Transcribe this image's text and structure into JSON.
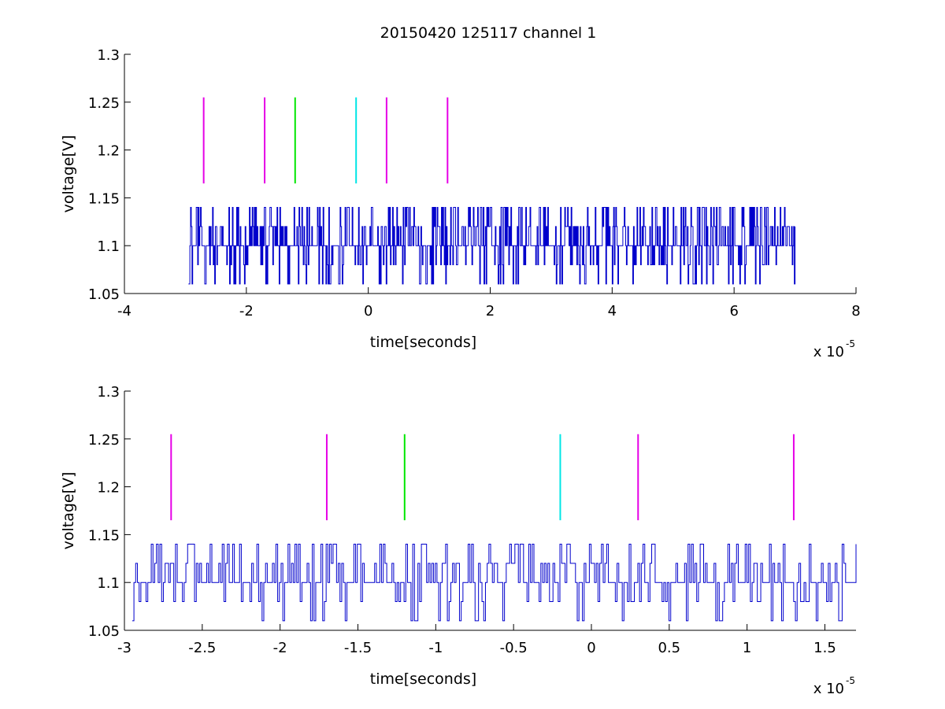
{
  "figure_title": "20150420 125117 channel 1",
  "colors": {
    "trace": "#0000cc",
    "magenta": "#e600e6",
    "green": "#00e600",
    "cyan": "#00e6e6"
  },
  "chart_data": [
    {
      "type": "line",
      "xlabel": "time[seconds]",
      "ylabel": "voltage[V]",
      "xlim": [
        -4,
        8
      ],
      "ylim": [
        1.05,
        1.3
      ],
      "x_exponent_label": "x 10",
      "x_exponent_power": "-5",
      "x_ticks": [
        "-4",
        "-2",
        "0",
        "2",
        "4",
        "6",
        "8"
      ],
      "y_ticks": [
        "1.05",
        "1.1",
        "1.15",
        "1.2",
        "1.25",
        "1.3"
      ],
      "trace": {
        "x_range": [
          -2.95,
          7.0
        ],
        "levels": [
          1.06,
          1.08,
          1.1,
          1.12,
          1.14
        ],
        "baseline": 1.1
      },
      "markers": [
        {
          "x": -2.7,
          "y0": 1.165,
          "y1": 1.255,
          "color": "magenta"
        },
        {
          "x": -1.7,
          "y0": 1.165,
          "y1": 1.255,
          "color": "magenta"
        },
        {
          "x": -1.2,
          "y0": 1.165,
          "y1": 1.255,
          "color": "green"
        },
        {
          "x": -0.2,
          "y0": 1.165,
          "y1": 1.255,
          "color": "cyan"
        },
        {
          "x": 0.3,
          "y0": 1.165,
          "y1": 1.255,
          "color": "magenta"
        },
        {
          "x": 1.3,
          "y0": 1.165,
          "y1": 1.255,
          "color": "magenta"
        }
      ]
    },
    {
      "type": "line",
      "xlabel": "time[seconds]",
      "ylabel": "voltage[V]",
      "xlim": [
        -3.0,
        1.7
      ],
      "ylim": [
        1.05,
        1.3
      ],
      "x_exponent_label": "x 10",
      "x_exponent_power": "-5",
      "x_ticks": [
        "-3",
        "-2.5",
        "-2",
        "-1.5",
        "-1",
        "-0.5",
        "0",
        "0.5",
        "1",
        "1.5"
      ],
      "y_ticks": [
        "1.05",
        "1.1",
        "1.15",
        "1.2",
        "1.25",
        "1.3"
      ],
      "trace": {
        "x_range": [
          -2.95,
          1.7
        ],
        "levels": [
          1.06,
          1.08,
          1.1,
          1.12,
          1.14
        ],
        "baseline": 1.1
      },
      "markers": [
        {
          "x": -2.7,
          "y0": 1.165,
          "y1": 1.255,
          "color": "magenta"
        },
        {
          "x": -1.7,
          "y0": 1.165,
          "y1": 1.255,
          "color": "magenta"
        },
        {
          "x": -1.2,
          "y0": 1.165,
          "y1": 1.255,
          "color": "green"
        },
        {
          "x": -0.2,
          "y0": 1.165,
          "y1": 1.255,
          "color": "cyan"
        },
        {
          "x": 0.3,
          "y0": 1.165,
          "y1": 1.255,
          "color": "magenta"
        },
        {
          "x": 1.3,
          "y0": 1.165,
          "y1": 1.255,
          "color": "magenta"
        }
      ]
    }
  ]
}
